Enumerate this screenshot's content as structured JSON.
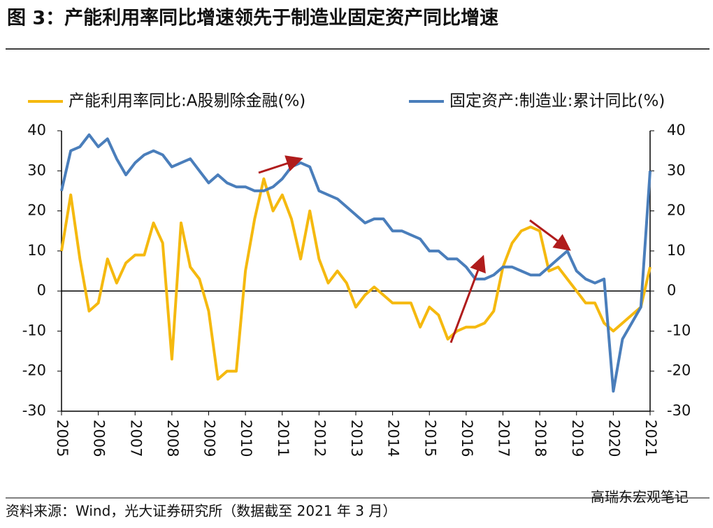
{
  "chart_data": {
    "type": "line",
    "title": "图 3：产能利用率同比增速领先于制造业固定资产同比增速",
    "source": "资料来源：Wind，光大证券研究所（数据截至 2021 年 3 月）",
    "watermark": "高瑞东宏观笔记",
    "x": [
      2005,
      2005.25,
      2005.5,
      2005.75,
      2006,
      2006.25,
      2006.5,
      2006.75,
      2007,
      2007.25,
      2007.5,
      2007.75,
      2008,
      2008.25,
      2008.5,
      2008.75,
      2009,
      2009.25,
      2009.5,
      2009.75,
      2010,
      2010.25,
      2010.5,
      2010.75,
      2011,
      2011.25,
      2011.5,
      2011.75,
      2012,
      2012.25,
      2012.5,
      2012.75,
      2013,
      2013.25,
      2013.5,
      2013.75,
      2014,
      2014.25,
      2014.5,
      2014.75,
      2015,
      2015.25,
      2015.5,
      2015.75,
      2016,
      2016.25,
      2016.5,
      2016.75,
      2017,
      2017.25,
      2017.5,
      2017.75,
      2018,
      2018.25,
      2018.5,
      2018.75,
      2019,
      2019.25,
      2019.5,
      2019.75,
      2020,
      2020.25,
      2020.5,
      2020.75,
      2021
    ],
    "series": [
      {
        "name": "产能利用率同比:A股剔除金融(%)",
        "color": "#f5b90f",
        "values": [
          10,
          24,
          8,
          -5,
          -3,
          8,
          2,
          7,
          9,
          9,
          17,
          12,
          -17,
          17,
          6,
          3,
          -5,
          -22,
          -20,
          -20,
          5,
          18,
          28,
          20,
          24,
          18,
          8,
          20,
          8,
          2,
          5,
          2,
          -4,
          -1,
          1,
          -1,
          -3,
          -3,
          -3,
          -9,
          -4,
          -6,
          -12,
          -10,
          -9,
          -9,
          -8,
          -5,
          6,
          12,
          15,
          16,
          15,
          5,
          6,
          3,
          0,
          -3,
          -3,
          -8,
          -10,
          -8,
          -6,
          -4,
          6
        ]
      },
      {
        "name": "固定资产:制造业:累计同比(%)",
        "color": "#4a7ebb",
        "axis": "y2",
        "values": [
          25,
          35,
          36,
          39,
          36,
          38,
          33,
          29,
          32,
          34,
          35,
          34,
          31,
          32,
          33,
          30,
          27,
          29,
          27,
          26,
          26,
          25,
          25,
          26,
          28,
          31,
          32,
          31,
          25,
          24,
          23,
          21,
          19,
          17,
          18,
          18,
          15,
          15,
          14,
          13,
          10,
          10,
          8,
          8,
          6,
          3,
          3,
          4,
          6,
          6,
          5,
          4,
          4,
          6,
          8,
          10,
          5,
          3,
          2,
          3,
          -25,
          -12,
          -8,
          -4,
          30
        ]
      }
    ],
    "xlim": [
      2005,
      2021
    ],
    "xticks": [
      2005,
      2006,
      2007,
      2008,
      2009,
      2010,
      2011,
      2012,
      2013,
      2014,
      2015,
      2016,
      2017,
      2018,
      2019,
      2020,
      2021
    ],
    "ylim": [
      -30,
      40
    ],
    "yticks": [
      -30,
      -20,
      -10,
      0,
      10,
      20,
      30,
      40
    ],
    "y2lim": [
      -30,
      40
    ],
    "y2ticks": [
      -30,
      -20,
      -10,
      0,
      10,
      20,
      30,
      40
    ]
  }
}
